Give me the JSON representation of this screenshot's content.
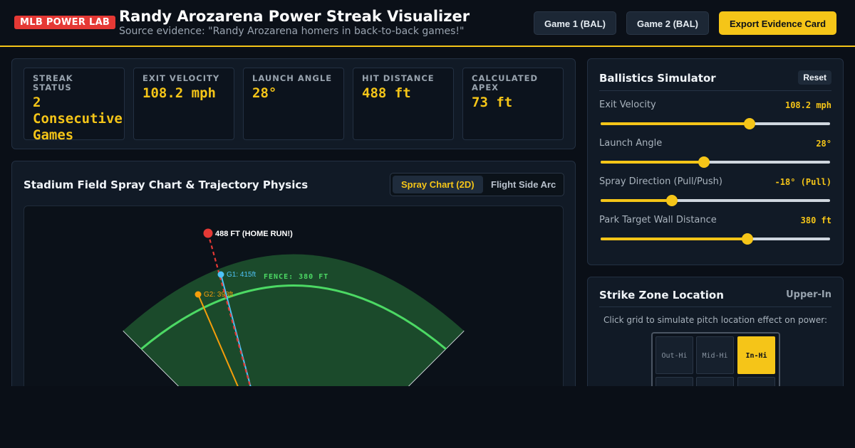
{
  "header": {
    "badge": "MLB POWER LAB",
    "title": "Randy Arozarena Power Streak Visualizer",
    "subtitle": "Source evidence: \"Randy Arozarena homers in back-to-back games!\"",
    "game1_label": "Game 1 (BAL)",
    "game2_label": "Game 2 (BAL)",
    "export_label": "Export Evidence Card"
  },
  "stats": [
    {
      "label": "STREAK STATUS",
      "value": "2\nConsecutive\nGames"
    },
    {
      "label": "EXIT VELOCITY",
      "value": "108.2 mph"
    },
    {
      "label": "LAUNCH ANGLE",
      "value": "28°"
    },
    {
      "label": "HIT DISTANCE",
      "value": "488 ft"
    },
    {
      "label": "CALCULATED APEX",
      "value": "73 ft"
    }
  ],
  "field": {
    "title": "Stadium Field Spray Chart & Trajectory Physics",
    "tabs": [
      {
        "label": "Spray Chart (2D)",
        "active": true
      },
      {
        "label": "Flight Side Arc",
        "active": false
      }
    ],
    "fence_label": "FENCE: 380 FT",
    "hits": [
      {
        "label": "488 FT (HOME RUN!)",
        "distance_ft": 488,
        "color": "#e53935"
      },
      {
        "label": "G1: 415ft",
        "distance_ft": 415,
        "color": "#4fc3f7"
      },
      {
        "label": "G2: 398ft",
        "distance_ft": 398,
        "color": "#f59e0b"
      }
    ]
  },
  "simulator": {
    "title": "Ballistics Simulator",
    "reset_label": "Reset",
    "sliders": [
      {
        "label": "Exit Velocity",
        "value_text": "108.2 mph",
        "fraction": 0.65
      },
      {
        "label": "Launch Angle",
        "value_text": "28°",
        "fraction": 0.45
      },
      {
        "label": "Spray Direction (Pull/Push)",
        "value_text": "-18° (Pull)",
        "fraction": 0.31
      },
      {
        "label": "Park Target Wall Distance",
        "value_text": "380 ft",
        "fraction": 0.64
      }
    ]
  },
  "strike_zone": {
    "title": "Strike Zone Location",
    "current": "Upper-In",
    "hint": "Click grid to simulate pitch location effect on power:",
    "cells": [
      {
        "label": "Out-Hi",
        "active": false
      },
      {
        "label": "Mid-Hi",
        "active": false
      },
      {
        "label": "In-Hi",
        "active": true
      },
      {
        "label": "",
        "active": false
      },
      {
        "label": "",
        "active": false
      },
      {
        "label": "",
        "active": false
      }
    ]
  },
  "colors": {
    "accent": "#f5c518",
    "home_run": "#e53935",
    "game1": "#4fc3f7",
    "game2": "#f59e0b",
    "fence": "#4cd964",
    "field": "#1b4a2b"
  }
}
